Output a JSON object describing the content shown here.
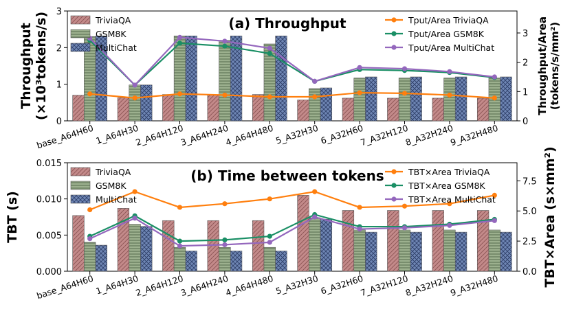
{
  "chart_data": [
    {
      "type": "bar",
      "title": "(a) Throughput",
      "categories": [
        "base_A64H60",
        "1_A64H30",
        "2_A64H120",
        "3_A64H240",
        "4_A64H480",
        "5_A32H30",
        "6_A32H60",
        "7_A32H120",
        "8_A32H240",
        "9_A32H480"
      ],
      "ylabel": "Throughput (×10³tokens/s)",
      "ylim": [
        0,
        3
      ],
      "yticks": [
        "0",
        "1",
        "2",
        "3"
      ],
      "series": [
        {
          "name": "TriviaQA",
          "color": "#c38a8a",
          "hatch": "diagonal",
          "values": [
            0.7,
            0.63,
            0.72,
            0.7,
            0.72,
            0.57,
            0.62,
            0.62,
            0.62,
            0.62
          ]
        },
        {
          "name": "GSM8K",
          "color": "#9cb08e",
          "hatch": "horizontal",
          "values": [
            2.3,
            0.98,
            2.32,
            2.2,
            2.1,
            0.88,
            1.17,
            1.17,
            1.17,
            1.17
          ]
        },
        {
          "name": "MultiChat",
          "color": "#6f86b4",
          "hatch": "cross",
          "values": [
            2.32,
            0.98,
            2.32,
            2.32,
            2.32,
            0.9,
            1.2,
            1.2,
            1.2,
            1.2
          ]
        }
      ],
      "y2label": "Throughput/Area (tokens/s/mm²)",
      "y2lim": [
        0,
        3.75
      ],
      "y2ticks": [
        "0",
        "1",
        "2",
        "3"
      ],
      "lines": [
        {
          "name": "Tput/Area TriviaQA",
          "color": "#ff7f0e",
          "values": [
            0.92,
            0.78,
            0.92,
            0.88,
            0.82,
            0.82,
            0.96,
            0.94,
            0.88,
            0.78
          ]
        },
        {
          "name": "Tput/Area GSM8K",
          "color": "#1a8f65",
          "values": [
            2.75,
            1.22,
            2.65,
            2.55,
            2.3,
            1.35,
            1.75,
            1.72,
            1.65,
            1.48
          ]
        },
        {
          "name": "Tput/Area MultiChat",
          "color": "#9467bd",
          "values": [
            2.82,
            1.22,
            2.85,
            2.72,
            2.48,
            1.35,
            1.82,
            1.78,
            1.68,
            1.5
          ]
        }
      ],
      "legend_left": "top-left",
      "legend_right": "top-right"
    },
    {
      "type": "bar",
      "title": "(b) Time between tokens",
      "categories": [
        "base_A64H60",
        "1_A64H30",
        "2_A64H120",
        "3_A64H240",
        "4_A64H480",
        "5_A32H30",
        "6_A32H60",
        "7_A32H120",
        "8_A32H240",
        "9_A32H480"
      ],
      "ylabel": "TBT (s)",
      "ylim": [
        0,
        0.015
      ],
      "yticks": [
        "0.000",
        "0.005",
        "0.010",
        "0.015"
      ],
      "series": [
        {
          "name": "TriviaQA",
          "color": "#c38a8a",
          "hatch": "diagonal",
          "values": [
            0.0077,
            0.0087,
            0.007,
            0.007,
            0.007,
            0.0105,
            0.0084,
            0.0084,
            0.0084,
            0.0084
          ]
        },
        {
          "name": "GSM8K",
          "color": "#9cb08e",
          "hatch": "horizontal",
          "values": [
            0.004,
            0.0065,
            0.0033,
            0.0033,
            0.0033,
            0.0074,
            0.0057,
            0.0057,
            0.0057,
            0.0057
          ]
        },
        {
          "name": "MultiChat",
          "color": "#6f86b4",
          "hatch": "cross",
          "values": [
            0.0036,
            0.0062,
            0.0028,
            0.0028,
            0.0028,
            0.0072,
            0.0054,
            0.0054,
            0.0054,
            0.0054
          ]
        }
      ],
      "y2label": "TBT×Area (s×mm²)",
      "y2lim": [
        0,
        9
      ],
      "y2ticks": [
        "0.0",
        "2.5",
        "5.0",
        "7.5"
      ],
      "lines": [
        {
          "name": "TBT×Area TriviaQA",
          "color": "#ff7f0e",
          "values": [
            5.1,
            6.6,
            5.3,
            5.6,
            6.0,
            6.6,
            5.3,
            5.4,
            5.6,
            6.3
          ]
        },
        {
          "name": "TBT×Area GSM8K",
          "color": "#1a8f65",
          "values": [
            2.9,
            4.6,
            2.5,
            2.6,
            2.9,
            4.7,
            3.7,
            3.7,
            3.9,
            4.3
          ]
        },
        {
          "name": "TBT×Area MultiChat",
          "color": "#9467bd",
          "values": [
            2.7,
            4.4,
            2.1,
            2.2,
            2.4,
            4.5,
            3.5,
            3.6,
            3.8,
            4.2
          ]
        }
      ],
      "legend_left": "top-left",
      "legend_right": "top-right"
    }
  ]
}
